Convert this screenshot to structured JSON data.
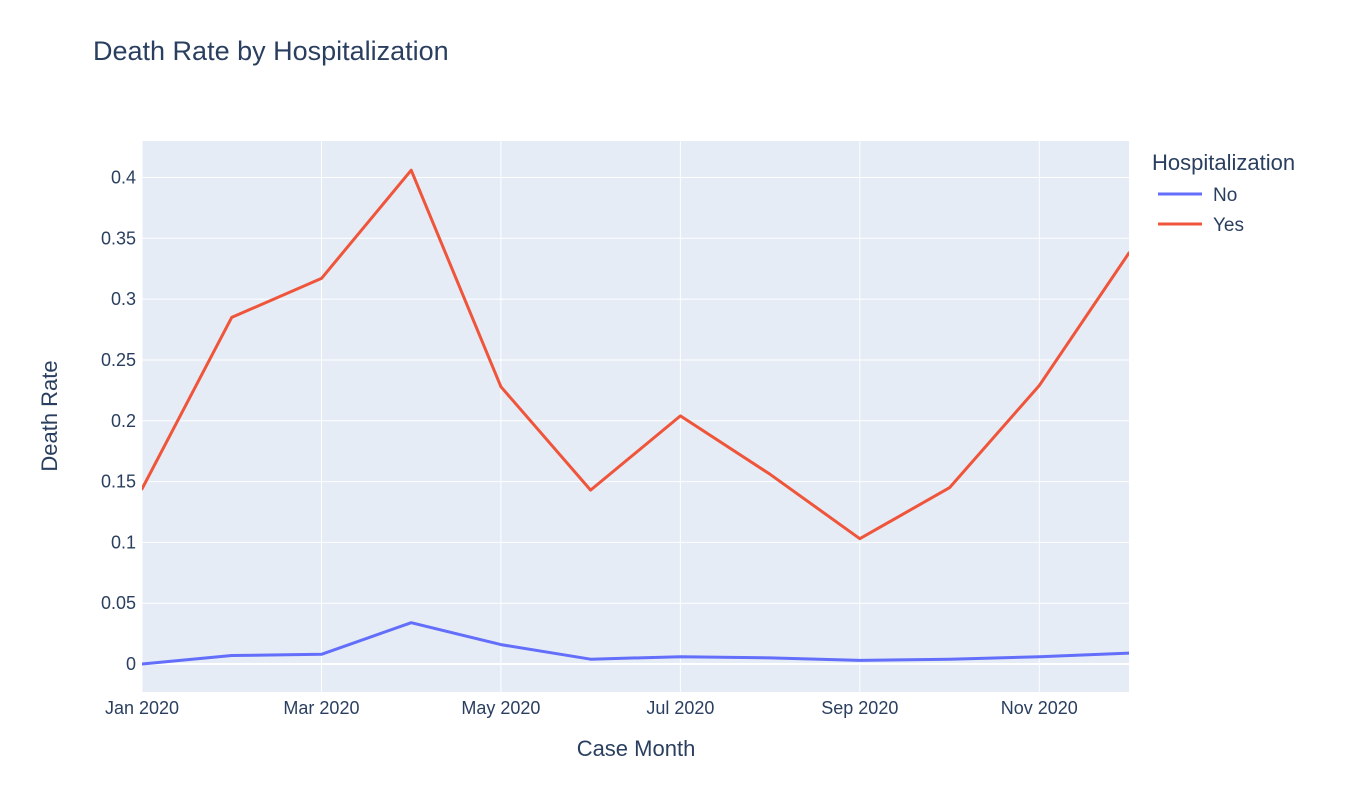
{
  "chart_data": {
    "type": "line",
    "title": "Death Rate by Hospitalization",
    "xlabel": "Case Month",
    "ylabel": "Death Rate",
    "x": [
      "Jan 2020",
      "Feb 2020",
      "Mar 2020",
      "Apr 2020",
      "May 2020",
      "Jun 2020",
      "Jul 2020",
      "Aug 2020",
      "Sep 2020",
      "Oct 2020",
      "Nov 2020",
      "Dec 2020"
    ],
    "xticks": [
      "Jan 2020",
      "Mar 2020",
      "May 2020",
      "Jul 2020",
      "Sep 2020",
      "Nov 2020"
    ],
    "yticks": [
      0,
      0.05,
      0.1,
      0.15,
      0.2,
      0.25,
      0.3,
      0.35,
      0.4
    ],
    "ytick_labels": [
      "0",
      "0.05",
      "0.1",
      "0.15",
      "0.2",
      "0.25",
      "0.3",
      "0.35",
      "0.4"
    ],
    "ylim": [
      -0.023,
      0.43
    ],
    "grid": true,
    "legend": {
      "title": "Hospitalization",
      "placement": "top-right-outside"
    },
    "series": [
      {
        "name": "No",
        "color": "#636efa",
        "values": [
          0.0,
          0.007,
          0.008,
          0.034,
          0.016,
          0.004,
          0.006,
          0.005,
          0.003,
          0.004,
          0.006,
          0.009
        ]
      },
      {
        "name": "Yes",
        "color": "#ef553b",
        "values": [
          0.144,
          0.285,
          0.317,
          0.406,
          0.228,
          0.143,
          0.204,
          0.156,
          0.103,
          0.145,
          0.229,
          0.338
        ]
      }
    ]
  },
  "colors": {
    "plot_bg": "#e5ecf6",
    "grid": "#ffffff",
    "text": "#2a3f5f"
  }
}
